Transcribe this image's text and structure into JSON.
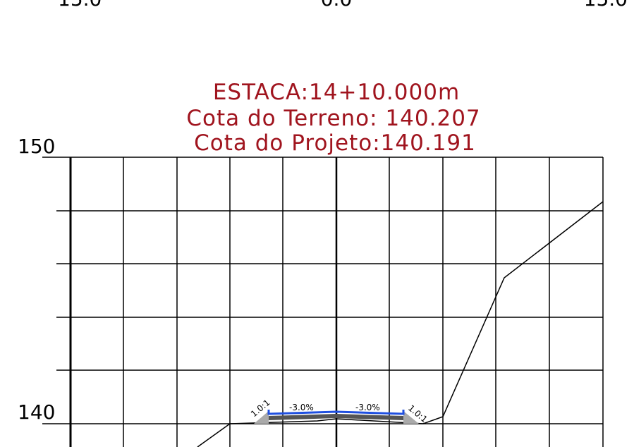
{
  "top_labels": [
    "15.0",
    "0.0",
    "15.0"
  ],
  "header": {
    "station": "ESTACA:14+10.000m",
    "terrain_elevation": "Cota do Terreno: 140.207",
    "project_elevation": "Cota do Projeto:140.191"
  },
  "elevation_labels": [
    "150",
    "140"
  ],
  "slopes": {
    "left_cut": "1.0:1",
    "left_lane": "-3.0%",
    "right_lane": "-3.0%",
    "right_cut": "1.0:1"
  }
}
